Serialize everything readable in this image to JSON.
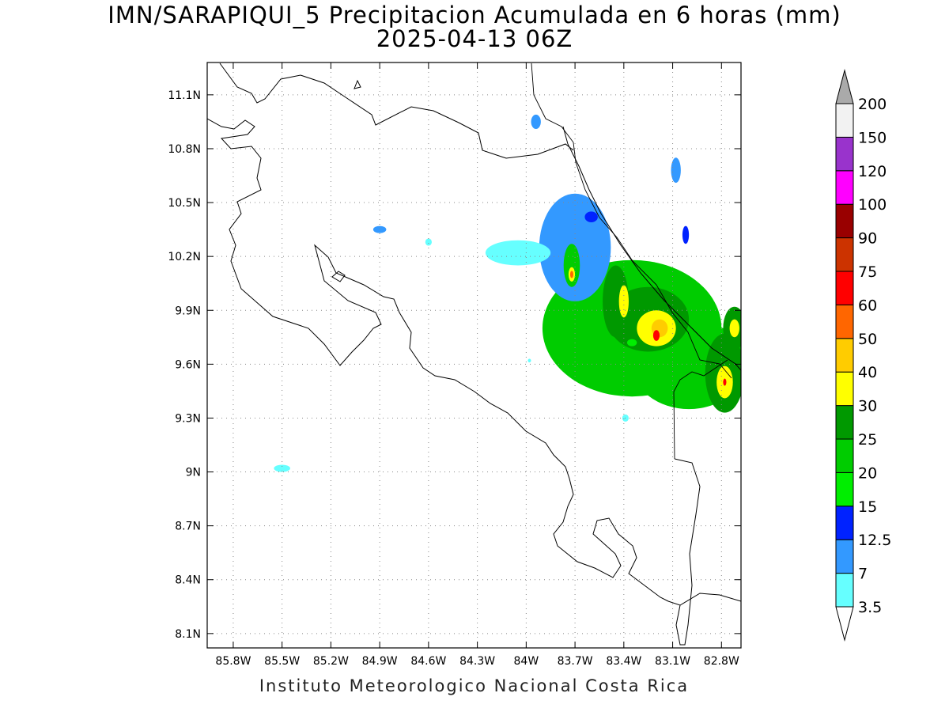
{
  "title": "IMN/SARAPIQUI_5 Precipitacion Acumulada en 6 horas (mm)",
  "subtitle": "2025-04-13 06Z",
  "footer": "Instituto Meteorologico Nacional Costa Rica",
  "map": {
    "lon_range": [
      -85.96,
      -82.68
    ],
    "lat_range": [
      8.02,
      11.28
    ],
    "lon_ticks": [
      "85.8W",
      "85.5W",
      "85.2W",
      "84.9W",
      "84.6W",
      "84.3W",
      "84W",
      "83.7W",
      "83.4W",
      "83.1W",
      "82.8W"
    ],
    "lon_tick_values": [
      -85.8,
      -85.5,
      -85.2,
      -84.9,
      -84.6,
      -84.3,
      -84.0,
      -83.7,
      -83.4,
      -83.1,
      -82.8
    ],
    "lat_ticks": [
      "8.1N",
      "8.4N",
      "8.7N",
      "9N",
      "9.3N",
      "9.6N",
      "9.9N",
      "10.2N",
      "10.5N",
      "10.8N",
      "11.1N"
    ],
    "lat_tick_values": [
      8.1,
      8.4,
      8.7,
      9.0,
      9.3,
      9.6,
      9.9,
      10.2,
      10.5,
      10.8,
      11.1
    ],
    "grid": true,
    "grid_style": "dotted"
  },
  "legend": {
    "position": "right",
    "max_arrow_color": "#aaaaaa",
    "min_arrow_color": "#ffffff",
    "bins": [
      {
        "label": "3.5",
        "color": "#66ffff"
      },
      {
        "label": "7",
        "color": "#3399ff"
      },
      {
        "label": "12.5",
        "color": "#0022ff"
      },
      {
        "label": "15",
        "color": "#00ee00"
      },
      {
        "label": "20",
        "color": "#00cc00"
      },
      {
        "label": "25",
        "color": "#009900"
      },
      {
        "label": "30",
        "color": "#ffff00"
      },
      {
        "label": "40",
        "color": "#ffcc00"
      },
      {
        "label": "50",
        "color": "#ff6600"
      },
      {
        "label": "60",
        "color": "#ff0000"
      },
      {
        "label": "75",
        "color": "#cc3300"
      },
      {
        "label": "90",
        "color": "#990000"
      },
      {
        "label": "100",
        "color": "#ff00ff"
      },
      {
        "label": "120",
        "color": "#9933cc"
      },
      {
        "label": "150",
        "color": "#f2f2f2"
      },
      {
        "label": "200",
        "color": ""
      }
    ]
  },
  "precip_cells": [
    {
      "lon": -83.35,
      "lat": 9.8,
      "value": 22,
      "rlon": 0.55,
      "rlat": 0.38
    },
    {
      "lon": -83.0,
      "lat": 9.6,
      "value": 20,
      "rlon": 0.35,
      "rlat": 0.25
    },
    {
      "lon": -83.7,
      "lat": 10.25,
      "value": 10,
      "rlon": 0.22,
      "rlat": 0.3
    },
    {
      "lon": -84.05,
      "lat": 10.22,
      "value": 6,
      "rlon": 0.2,
      "rlat": 0.07
    },
    {
      "lon": -83.25,
      "lat": 9.85,
      "value": 28,
      "rlon": 0.25,
      "rlat": 0.18
    },
    {
      "lon": -83.45,
      "lat": 9.95,
      "value": 25,
      "rlon": 0.08,
      "rlat": 0.2
    },
    {
      "lon": -82.78,
      "lat": 9.55,
      "value": 27,
      "rlon": 0.12,
      "rlat": 0.22
    },
    {
      "lon": -82.72,
      "lat": 9.8,
      "value": 26,
      "rlon": 0.07,
      "rlat": 0.12
    },
    {
      "lon": -83.72,
      "lat": 10.15,
      "value": 22,
      "rlon": 0.05,
      "rlat": 0.12
    },
    {
      "lon": -83.2,
      "lat": 9.8,
      "value": 35,
      "rlon": 0.12,
      "rlat": 0.1
    },
    {
      "lon": -83.4,
      "lat": 9.95,
      "value": 35,
      "rlon": 0.03,
      "rlat": 0.09
    },
    {
      "lon": -82.78,
      "lat": 9.5,
      "value": 35,
      "rlon": 0.05,
      "rlat": 0.09
    },
    {
      "lon": -82.72,
      "lat": 9.8,
      "value": 35,
      "rlon": 0.03,
      "rlat": 0.05
    },
    {
      "lon": -83.72,
      "lat": 10.1,
      "value": 35,
      "rlon": 0.02,
      "rlat": 0.04
    },
    {
      "lon": -83.18,
      "lat": 9.8,
      "value": 45,
      "rlon": 0.05,
      "rlat": 0.05
    },
    {
      "lon": -83.2,
      "lat": 9.76,
      "value": 62,
      "rlon": 0.02,
      "rlat": 0.03
    },
    {
      "lon": -82.78,
      "lat": 9.5,
      "value": 62,
      "rlon": 0.01,
      "rlat": 0.02
    },
    {
      "lon": -83.72,
      "lat": 10.1,
      "value": 55,
      "rlon": 0.01,
      "rlat": 0.02
    },
    {
      "lon": -83.35,
      "lat": 9.72,
      "value": 18,
      "rlon": 0.03,
      "rlat": 0.02
    },
    {
      "lon": -83.08,
      "lat": 10.68,
      "value": 10,
      "rlon": 0.03,
      "rlat": 0.07
    },
    {
      "lon": -83.02,
      "lat": 10.32,
      "value": 14,
      "rlon": 0.02,
      "rlat": 0.05
    },
    {
      "lon": -83.6,
      "lat": 10.42,
      "value": 13,
      "rlon": 0.04,
      "rlat": 0.03
    },
    {
      "lon": -84.9,
      "lat": 10.35,
      "value": 7,
      "rlon": 0.04,
      "rlat": 0.02
    },
    {
      "lon": -84.6,
      "lat": 10.28,
      "value": 4,
      "rlon": 0.02,
      "rlat": 0.02
    },
    {
      "lon": -83.94,
      "lat": 10.95,
      "value": 8,
      "rlon": 0.03,
      "rlat": 0.04
    },
    {
      "lon": -85.5,
      "lat": 9.02,
      "value": 6,
      "rlon": 0.05,
      "rlat": 0.02
    },
    {
      "lon": -83.39,
      "lat": 9.3,
      "value": 5,
      "rlon": 0.02,
      "rlat": 0.02
    },
    {
      "lon": -83.98,
      "lat": 9.62,
      "value": 4,
      "rlon": 0.01,
      "rlat": 0.01
    }
  ]
}
